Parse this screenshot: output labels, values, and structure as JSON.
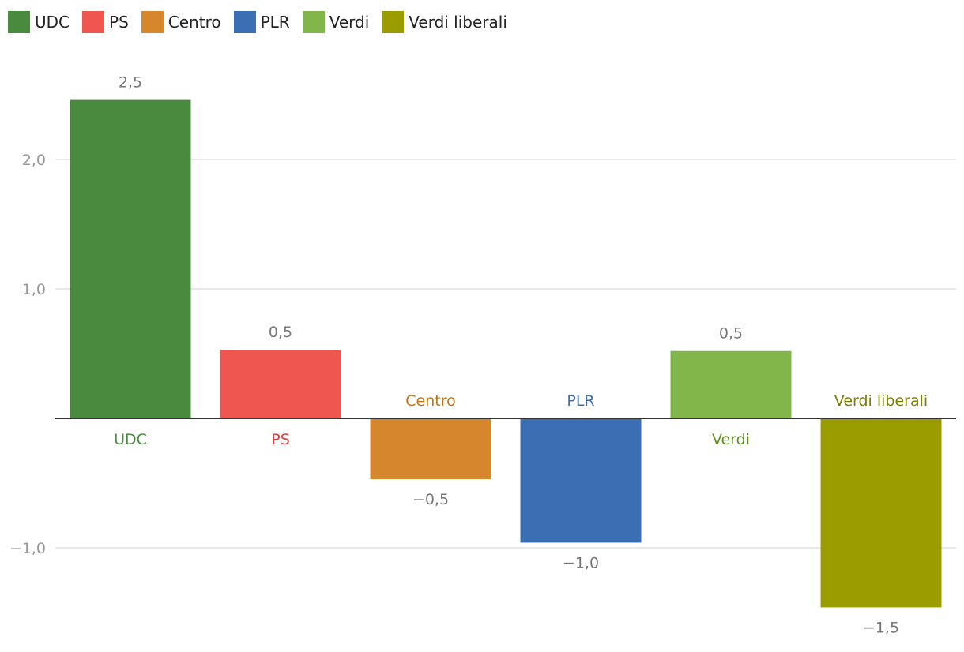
{
  "chart_data": {
    "type": "bar",
    "categories": [
      "UDC",
      "PS",
      "Centro",
      "PLR",
      "Verdi",
      "Verdi liberali"
    ],
    "values": [
      2.46,
      0.53,
      -0.47,
      -0.96,
      0.52,
      -1.46
    ],
    "value_labels": [
      "2,5",
      "0,5",
      "−0,5",
      "−1,0",
      "0,5",
      "−1,5"
    ],
    "colors": [
      "#4a8a3f",
      "#ef5650",
      "#d6862b",
      "#3a70b3",
      "#82b54a",
      "#9b9c00"
    ],
    "label_colors": [
      "#4a8a3f",
      "#d9433d",
      "#c47414",
      "#3a70b3",
      "#5e8f22",
      "#7b7c00"
    ],
    "yticks": [
      {
        "value": 2.0,
        "label": "2,0"
      },
      {
        "value": 1.0,
        "label": "1,0"
      },
      {
        "value": -1.0,
        "label": "−1,0"
      }
    ],
    "ylim": [
      -1.66,
      2.84
    ],
    "title": "",
    "xlabel": "",
    "ylabel": "",
    "grid": true,
    "legend_position": "top-left"
  }
}
